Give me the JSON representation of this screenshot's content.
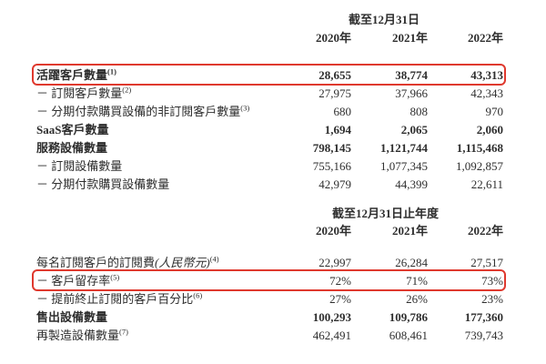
{
  "page": {
    "background_color": "#ffffff",
    "text_color": "#2e2e2e",
    "highlight_color": "#df392e"
  },
  "tables": [
    {
      "period_header": "截至12月31日",
      "years": [
        "2020年",
        "2021年",
        "2022年"
      ],
      "rows": [
        {
          "label": "活躍客戶數量",
          "sup": "(1)",
          "values": [
            "28,655",
            "38,774",
            "43,313"
          ]
        },
        {
          "label": "－ 訂閱客戶數量",
          "sup": "(2)",
          "values": [
            "27,975",
            "37,966",
            "42,343"
          ]
        },
        {
          "label": "－ 分期付款購買設備的非訂閱客戶數量",
          "sup": "(3)",
          "values": [
            "680",
            "808",
            "970"
          ]
        },
        {
          "label": "SaaS客戶數量",
          "values": [
            "1,694",
            "2,065",
            "2,060"
          ]
        },
        {
          "label": "服務設備數量",
          "values": [
            "798,145",
            "1,121,744",
            "1,115,468"
          ]
        },
        {
          "label": "－ 訂閱設備數量",
          "values": [
            "755,166",
            "1,077,345",
            "1,092,857"
          ]
        },
        {
          "label": "－ 分期付款購買設備數量",
          "values": [
            "42,979",
            "44,399",
            "22,611"
          ]
        }
      ]
    },
    {
      "period_header": "截至12月31日止年度",
      "years": [
        "2020年",
        "2021年",
        "2022年"
      ],
      "rows": [
        {
          "label": "每名訂閱客戶的訂閱費",
          "label_italic": "(人民幣元)",
          "sup": "(4)",
          "values": [
            "22,997",
            "26,284",
            "27,517"
          ]
        },
        {
          "label": "－ 客戶留存率",
          "sup": "(5)",
          "values": [
            "72%",
            "71%",
            "73%"
          ]
        },
        {
          "label": "－ 提前終止訂閱的客戶百分比",
          "sup": "(6)",
          "values": [
            "27%",
            "26%",
            "23%"
          ]
        },
        {
          "label": "售出設備數量",
          "values": [
            "100,293",
            "109,786",
            "177,360"
          ]
        },
        {
          "label": "再製造設備數量",
          "sup": "(7)",
          "values": [
            "462,491",
            "608,461",
            "739,743"
          ]
        }
      ]
    }
  ],
  "annotations": {
    "highlighted_row_labels": [
      "活躍客戶數量",
      "－ 客戶留存率"
    ]
  }
}
